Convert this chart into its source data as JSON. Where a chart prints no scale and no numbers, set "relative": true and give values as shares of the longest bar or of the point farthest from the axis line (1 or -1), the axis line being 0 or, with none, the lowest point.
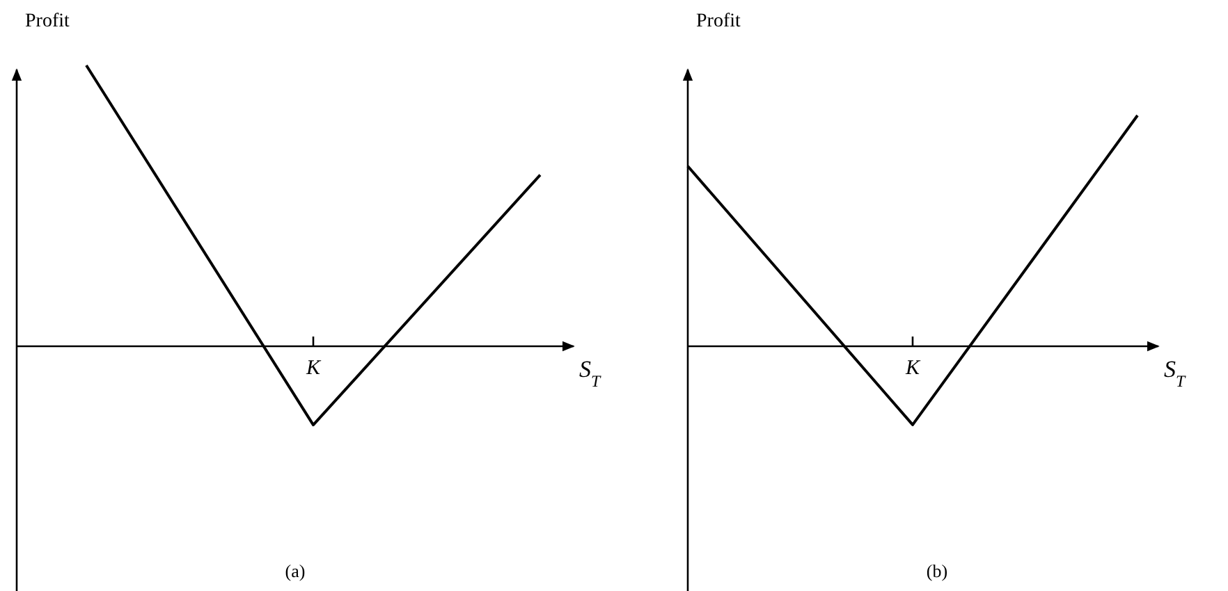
{
  "chart_data": [
    {
      "type": "line",
      "title": "(a)",
      "xlabel": "S$_{T}$",
      "ylabel": "Profit",
      "relative": true,
      "categories": [
        null,
        null,
        null
      ],
      "annotations": [
        "K"
      ],
      "series": [
        {
          "color": "#000000",
          "values": [
            1,
            -0.28,
            0.61
          ]
        }
      ]
    },
    {
      "type": "line",
      "title": "(b)",
      "xlabel": "S$_{T}$",
      "ylabel": "Profit",
      "relative": true,
      "categories": [
        null,
        null,
        null
      ],
      "annotations": [
        "K"
      ],
      "series": [
        {
          "color": "#000000",
          "values": [
            0.78,
            -0.34,
            1
          ]
        }
      ]
    }
  ]
}
